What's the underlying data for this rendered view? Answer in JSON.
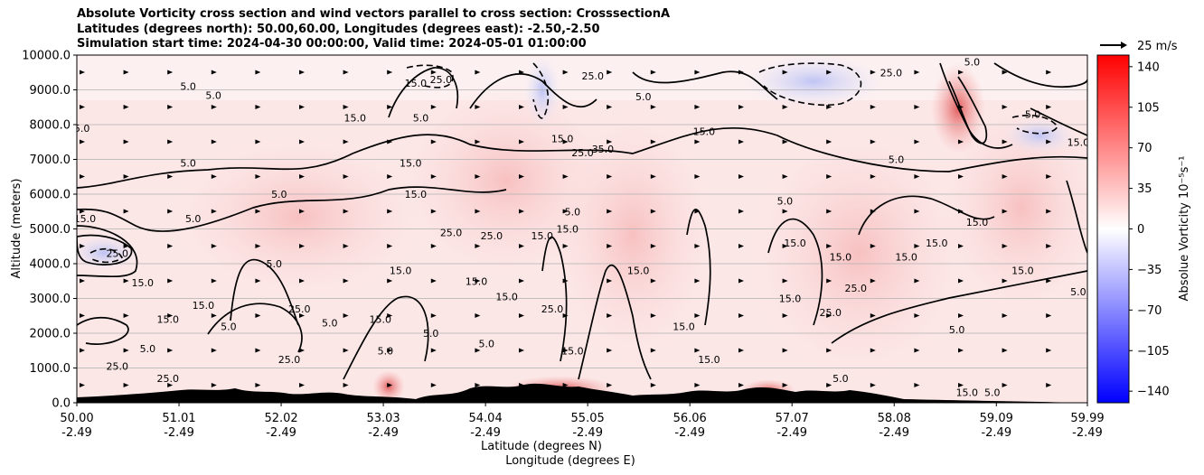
{
  "title_lines": [
    "Absolute Vorticity cross section and wind vectors parallel to cross section: CrosssectionA",
    "Latitudes (degrees north): 50.00,60.00, Longitudes (degrees east): -2.50,-2.50",
    "Simulation start time: 2024-04-30 00:00:00, Valid time: 2024-05-01 01:00:00"
  ],
  "chart_data": {
    "type": "heatmap",
    "ylabel": "Altitude (meters)",
    "xlabel_lines": [
      "Latitude (degrees N)",
      "Longitude (degrees E)"
    ],
    "x_range": [
      50.0,
      59.99
    ],
    "ylim": [
      0,
      10000
    ],
    "y_ticks": [
      "0.0",
      "1000.0",
      "2000.0",
      "3000.0",
      "4000.0",
      "5000.0",
      "6000.0",
      "7000.0",
      "8000.0",
      "9000.0",
      "10000.0"
    ],
    "y_tick_values": [
      0,
      1000,
      2000,
      3000,
      4000,
      5000,
      6000,
      7000,
      8000,
      9000,
      10000
    ],
    "x_ticks": [
      {
        "lat": "50.00",
        "lon": "-2.49",
        "value": 50.0
      },
      {
        "lat": "51.01",
        "lon": "-2.49",
        "value": 51.01
      },
      {
        "lat": "52.02",
        "lon": "-2.49",
        "value": 52.02
      },
      {
        "lat": "53.03",
        "lon": "-2.49",
        "value": 53.03
      },
      {
        "lat": "54.04",
        "lon": "-2.49",
        "value": 54.04
      },
      {
        "lat": "55.05",
        "lon": "-2.49",
        "value": 55.05
      },
      {
        "lat": "56.06",
        "lon": "-2.49",
        "value": 56.06
      },
      {
        "lat": "57.07",
        "lon": "-2.49",
        "value": 57.07
      },
      {
        "lat": "58.08",
        "lon": "-2.49",
        "value": 58.08
      },
      {
        "lat": "59.09",
        "lon": "-2.49",
        "value": 59.09
      },
      {
        "lat": "59.99",
        "lon": "-2.49",
        "value": 59.99
      }
    ],
    "grid": "horizontal",
    "colorbar": {
      "label": "Absolue Vorticity 10⁻⁵s⁻¹",
      "range": [
        -150,
        150
      ],
      "ticks": [
        "140",
        "105",
        "70",
        "35",
        "0",
        "−35",
        "−70",
        "−105",
        "−140"
      ],
      "tick_values": [
        140,
        105,
        70,
        35,
        0,
        -35,
        -70,
        -105,
        -140
      ],
      "colors": {
        "low": "#0000ff",
        "mid": "#ffffff",
        "high": "#ff0000"
      }
    },
    "quiver_key": "25 m/s",
    "contour_labels": [
      {
        "text": "5.0",
        "x": 50.05,
        "y": 7900
      },
      {
        "text": "15.0",
        "x": 50.08,
        "y": 5300
      },
      {
        "text": "25.0",
        "x": 50.4,
        "y": 4300
      },
      {
        "text": "15.0",
        "x": 50.65,
        "y": 3450
      },
      {
        "text": "5.0",
        "x": 50.7,
        "y": 1560
      },
      {
        "text": "25.0",
        "x": 50.4,
        "y": 1050
      },
      {
        "text": "25.0",
        "x": 50.9,
        "y": 700
      },
      {
        "text": "5.0",
        "x": 51.1,
        "y": 9100
      },
      {
        "text": "5.0",
        "x": 51.35,
        "y": 8850
      },
      {
        "text": "5.0",
        "x": 51.1,
        "y": 6900
      },
      {
        "text": "5.0",
        "x": 51.15,
        "y": 5300
      },
      {
        "text": "15.0",
        "x": 50.9,
        "y": 2400
      },
      {
        "text": "15.0",
        "x": 51.25,
        "y": 2800
      },
      {
        "text": "5.0",
        "x": 51.5,
        "y": 2200
      },
      {
        "text": "5.0",
        "x": 52.0,
        "y": 6000
      },
      {
        "text": "5.0",
        "x": 51.95,
        "y": 4000
      },
      {
        "text": "25.0",
        "x": 52.2,
        "y": 2700
      },
      {
        "text": "5.0",
        "x": 52.5,
        "y": 2300
      },
      {
        "text": "25.0",
        "x": 52.1,
        "y": 1250
      },
      {
        "text": "15.0",
        "x": 52.75,
        "y": 8200
      },
      {
        "text": "15.0",
        "x": 53.0,
        "y": 2400
      },
      {
        "text": "15.0",
        "x": 53.35,
        "y": 9200
      },
      {
        "text": "25.0",
        "x": 53.6,
        "y": 9300
      },
      {
        "text": "5.0",
        "x": 53.4,
        "y": 8200
      },
      {
        "text": "15.0",
        "x": 53.3,
        "y": 6900
      },
      {
        "text": "15.0",
        "x": 53.35,
        "y": 6000
      },
      {
        "text": "15.0",
        "x": 53.2,
        "y": 3800
      },
      {
        "text": "25.0",
        "x": 53.7,
        "y": 4900
      },
      {
        "text": "25.0",
        "x": 54.1,
        "y": 4800
      },
      {
        "text": "15.0",
        "x": 53.95,
        "y": 3500
      },
      {
        "text": "15.0",
        "x": 54.25,
        "y": 3050
      },
      {
        "text": "5.0",
        "x": 53.05,
        "y": 1500
      },
      {
        "text": "5.0",
        "x": 53.5,
        "y": 2000
      },
      {
        "text": "5.0",
        "x": 54.05,
        "y": 1700
      },
      {
        "text": "15.0",
        "x": 54.8,
        "y": 7600
      },
      {
        "text": "35.0",
        "x": 55.2,
        "y": 7300
      },
      {
        "text": "25.0",
        "x": 55.0,
        "y": 7200
      },
      {
        "text": "25.0",
        "x": 55.1,
        "y": 9400
      },
      {
        "text": "15.0",
        "x": 54.6,
        "y": 4800
      },
      {
        "text": "5.0",
        "x": 54.9,
        "y": 5500
      },
      {
        "text": "15.0",
        "x": 54.85,
        "y": 5000
      },
      {
        "text": "15.0",
        "x": 55.55,
        "y": 3800
      },
      {
        "text": "25.0",
        "x": 54.7,
        "y": 2700
      },
      {
        "text": "15.0",
        "x": 54.9,
        "y": 1500
      },
      {
        "text": "5.0",
        "x": 55.6,
        "y": 8800
      },
      {
        "text": "15.0",
        "x": 56.2,
        "y": 7800
      },
      {
        "text": "15.0",
        "x": 56.25,
        "y": 1250
      },
      {
        "text": "15.0",
        "x": 56.0,
        "y": 2200
      },
      {
        "text": "15.0",
        "x": 57.05,
        "y": 3000
      },
      {
        "text": "5.0",
        "x": 57.0,
        "y": 5800
      },
      {
        "text": "15.0",
        "x": 57.1,
        "y": 4600
      },
      {
        "text": "15.0",
        "x": 57.55,
        "y": 4200
      },
      {
        "text": "15.0",
        "x": 58.2,
        "y": 4200
      },
      {
        "text": "25.0",
        "x": 57.7,
        "y": 3300
      },
      {
        "text": "25.0",
        "x": 57.45,
        "y": 2600
      },
      {
        "text": "5.0",
        "x": 57.55,
        "y": 700
      },
      {
        "text": "5.0",
        "x": 58.1,
        "y": 7000
      },
      {
        "text": "25.0",
        "x": 58.05,
        "y": 9500
      },
      {
        "text": "15.0",
        "x": 58.5,
        "y": 4600
      },
      {
        "text": "15.0",
        "x": 58.9,
        "y": 5200
      },
      {
        "text": "5.0",
        "x": 58.7,
        "y": 2100
      },
      {
        "text": "15.0",
        "x": 59.35,
        "y": 3800
      },
      {
        "text": "5.0",
        "x": 59.9,
        "y": 3200
      },
      {
        "text": "15.0",
        "x": 59.9,
        "y": 7500
      },
      {
        "text": "5.0",
        "x": 59.45,
        "y": 8300
      },
      {
        "text": "5.0",
        "x": 58.85,
        "y": 9800
      },
      {
        "text": "15.0",
        "x": 58.8,
        "y": 300
      },
      {
        "text": "5.0",
        "x": 59.05,
        "y": 300
      }
    ]
  }
}
